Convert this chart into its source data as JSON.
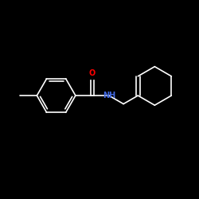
{
  "background_color": "#000000",
  "bond_color": "#ffffff",
  "O_color": "#ff0000",
  "N_color": "#4169e1",
  "O_label": "O",
  "N_label": "NH",
  "fig_width": 2.5,
  "fig_height": 2.5,
  "dpi": 100,
  "lw": 1.2,
  "fontsize": 7
}
